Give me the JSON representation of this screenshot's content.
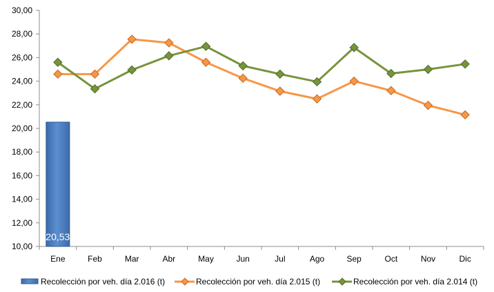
{
  "chart_data": {
    "type": "bar+line",
    "categories": [
      "Ene",
      "Feb",
      "Mar",
      "Abr",
      "May",
      "Jun",
      "Jul",
      "Ago",
      "Sep",
      "Oct",
      "Nov",
      "Dic"
    ],
    "ylim": [
      10,
      30
    ],
    "yticks": [
      "10,00",
      "12,00",
      "14,00",
      "16,00",
      "18,00",
      "20,00",
      "22,00",
      "24,00",
      "26,00",
      "28,00",
      "30,00"
    ],
    "grid": false,
    "legend_position": "bottom",
    "series": [
      {
        "name": "Recolección por veh. día 2.016 (t)",
        "kind": "bar",
        "color": "#4f81bd",
        "values": [
          20.53,
          null,
          null,
          null,
          null,
          null,
          null,
          null,
          null,
          null,
          null,
          null
        ],
        "labels": [
          "20,53"
        ]
      },
      {
        "name": "Recolección por veh. día 2.015 (t)",
        "kind": "line",
        "color": "#f79646",
        "values": [
          24.6,
          24.6,
          27.55,
          27.25,
          25.6,
          24.25,
          23.15,
          22.5,
          24.0,
          23.2,
          21.95,
          21.15
        ]
      },
      {
        "name": "Recolección por veh. día 2.014 (t)",
        "kind": "line",
        "color": "#77933c",
        "values": [
          25.6,
          23.35,
          24.95,
          26.15,
          26.95,
          25.3,
          24.6,
          23.95,
          26.85,
          24.65,
          25.0,
          25.45
        ]
      }
    ]
  }
}
